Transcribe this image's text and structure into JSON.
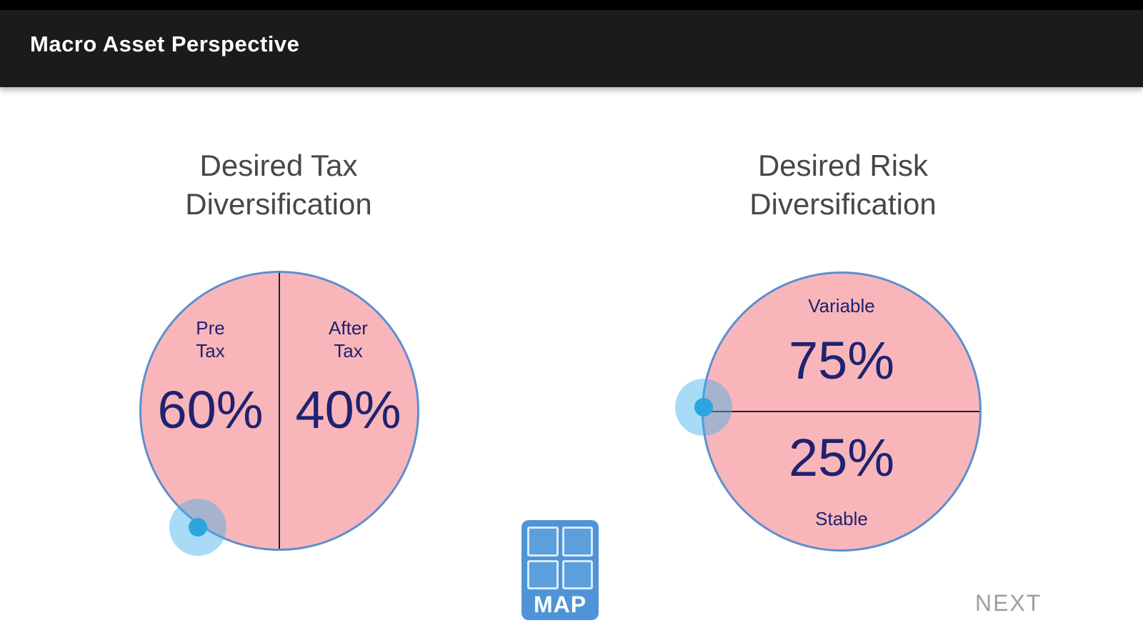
{
  "header": {
    "title": "Macro Asset Perspective"
  },
  "tax_chart": {
    "title_line1": "Desired Tax",
    "title_line2": "Diversification",
    "segments": {
      "pre": {
        "label_line1": "Pre",
        "label_line2": "Tax",
        "value": "60%"
      },
      "after": {
        "label_line1": "After",
        "label_line2": "Tax",
        "value": "40%"
      }
    }
  },
  "risk_chart": {
    "title_line1": "Desired Risk",
    "title_line2": "Diversification",
    "segments": {
      "variable": {
        "label": "Variable",
        "value": "75%"
      },
      "stable": {
        "label": "Stable",
        "value": "25%"
      }
    }
  },
  "logo": {
    "text": "MAP"
  },
  "footer": {
    "next": "NEXT"
  },
  "colors": {
    "header_bg": "#1b1b1b",
    "circle_fill": "#f9b6ba",
    "circle_border": "#5b8fd0",
    "divider": "#1e1e3c",
    "value_text": "#1f2270",
    "heading_text": "#474747",
    "logo_blue": "#4f94d8",
    "touch_blue": "#2ba6e0",
    "next_text": "#9e9e9e"
  },
  "chart_data": [
    {
      "type": "pie",
      "title": "Desired Tax Diversification",
      "categories": [
        "Pre Tax",
        "After Tax"
      ],
      "values": [
        60,
        40
      ],
      "legend_position": "inside"
    },
    {
      "type": "pie",
      "title": "Desired Risk Diversification",
      "categories": [
        "Variable",
        "Stable"
      ],
      "values": [
        75,
        25
      ],
      "legend_position": "inside"
    }
  ]
}
